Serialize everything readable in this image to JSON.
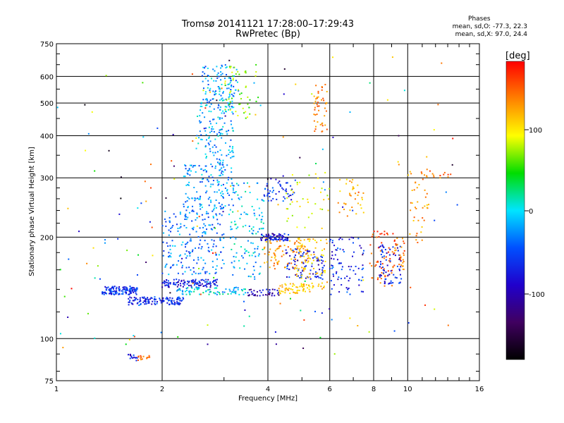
{
  "header": {
    "title_line1": "Tromsø 20141121 17:28:00–17:29:43",
    "title_line2": "RwPretec (Bp)"
  },
  "stats": {
    "heading": "Phases",
    "line_o": "mean, sd,O:  -77.3, 22.3",
    "line_x": "mean, sd,X:  97.0, 24.4"
  },
  "colorbar": {
    "label": "[deg]",
    "ticks": [
      "100",
      "0",
      "-100"
    ],
    "colors": [
      "#ff0000",
      "#ff8000",
      "#ffff00",
      "#00dd00",
      "#00e5ff",
      "#0050ff",
      "#2000cc",
      "#400060",
      "#000000"
    ]
  },
  "chart_data": {
    "type": "scatter",
    "title": "Tromsø 20141121 17:28:00–17:29:43",
    "subtitle": "RwPretec (Bp)",
    "xlabel": "Frequency [MHz]",
    "ylabel": "Stationary phase Virtual Height [km]",
    "xscale": "log",
    "yscale": "log",
    "xlim": [
      1,
      16
    ],
    "ylim": [
      75,
      750
    ],
    "xticks": [
      1,
      2,
      4,
      6,
      8,
      10,
      16
    ],
    "xtick_labels": [
      "1",
      "2",
      "4",
      "6",
      "8",
      "10",
      "16"
    ],
    "yticks": [
      75,
      100,
      200,
      300,
      400,
      500,
      600,
      750
    ],
    "ytick_labels": [
      "75",
      "100",
      "200",
      "300",
      "400",
      "500",
      "600",
      "750"
    ],
    "grid": true,
    "color_scale": "phase [deg]",
    "point_groups": [
      {
        "x": [
          1.35,
          1.7
        ],
        "y": [
          135,
          143
        ],
        "phase": -95,
        "n": 130
      },
      {
        "x": [
          1.6,
          2.3
        ],
        "y": [
          126,
          133
        ],
        "phase": -100,
        "n": 120
      },
      {
        "x": [
          2.0,
          2.9
        ],
        "y": [
          142,
          150
        ],
        "phase": -105,
        "n": 110
      },
      {
        "x": [
          2.2,
          3.5
        ],
        "y": [
          135,
          142
        ],
        "phase": -45,
        "n": 80
      },
      {
        "x": [
          2.0,
          3.0
        ],
        "y": [
          155,
          240
        ],
        "phase": -70,
        "n": 200
      },
      {
        "x": [
          2.3,
          3.2
        ],
        "y": [
          240,
          330
        ],
        "phase": -65,
        "n": 150
      },
      {
        "x": [
          2.5,
          3.2
        ],
        "y": [
          330,
          520
        ],
        "phase": -55,
        "n": 160
      },
      {
        "x": [
          2.6,
          3.3
        ],
        "y": [
          520,
          650
        ],
        "phase": -60,
        "n": 90
      },
      {
        "x": [
          3.0,
          3.8
        ],
        "y": [
          450,
          650
        ],
        "phase": 30,
        "n": 50
      },
      {
        "x": [
          3.1,
          3.9
        ],
        "y": [
          150,
          290
        ],
        "phase": -50,
        "n": 120
      },
      {
        "x": [
          3.8,
          4.6
        ],
        "y": [
          195,
          205
        ],
        "phase": -110,
        "n": 70
      },
      {
        "x": [
          3.5,
          4.3
        ],
        "y": [
          134,
          140
        ],
        "phase": -125,
        "n": 40
      },
      {
        "x": [
          3.9,
          5.2
        ],
        "y": [
          160,
          200
        ],
        "phase": 110,
        "n": 90
      },
      {
        "x": [
          4.3,
          5.4
        ],
        "y": [
          136,
          146
        ],
        "phase": 90,
        "n": 60
      },
      {
        "x": [
          4.5,
          5.8
        ],
        "y": [
          150,
          185
        ],
        "phase": -105,
        "n": 90
      },
      {
        "x": [
          4.8,
          5.9
        ],
        "y": [
          140,
          200
        ],
        "phase": 85,
        "n": 80
      },
      {
        "x": [
          3.9,
          4.8
        ],
        "y": [
          255,
          300
        ],
        "phase": -100,
        "n": 50
      },
      {
        "x": [
          4.5,
          6.0
        ],
        "y": [
          210,
          320
        ],
        "phase": 60,
        "n": 40
      },
      {
        "x": [
          5.4,
          5.9
        ],
        "y": [
          400,
          580
        ],
        "phase": 120,
        "n": 45
      },
      {
        "x": [
          6.0,
          7.5
        ],
        "y": [
          135,
          200
        ],
        "phase": -100,
        "n": 80
      },
      {
        "x": [
          6.3,
          7.5
        ],
        "y": [
          230,
          300
        ],
        "phase": 100,
        "n": 35
      },
      {
        "x": [
          7.8,
          9.3
        ],
        "y": [
          140,
          210
        ],
        "phase": 140,
        "n": 60
      },
      {
        "x": [
          8.3,
          9.6
        ],
        "y": [
          145,
          190
        ],
        "phase": -105,
        "n": 70
      },
      {
        "x": [
          9.0,
          9.8
        ],
        "y": [
          160,
          200
        ],
        "phase": 130,
        "n": 30
      },
      {
        "x": [
          10.0,
          11.5
        ],
        "y": [
          190,
          320
        ],
        "phase": 110,
        "n": 40
      },
      {
        "x": [
          11.0,
          13.5
        ],
        "y": [
          300,
          320
        ],
        "phase": 130,
        "n": 15
      },
      {
        "x": [
          1.6,
          1.7
        ],
        "y": [
          86,
          90
        ],
        "phase": -110,
        "n": 14
      },
      {
        "x": [
          1.7,
          1.85
        ],
        "y": [
          86,
          89
        ],
        "phase": 130,
        "n": 14
      },
      {
        "x": [
          1.0,
          14.0
        ],
        "y": [
          90,
          700
        ],
        "phase": 0,
        "n": 160
      }
    ]
  }
}
